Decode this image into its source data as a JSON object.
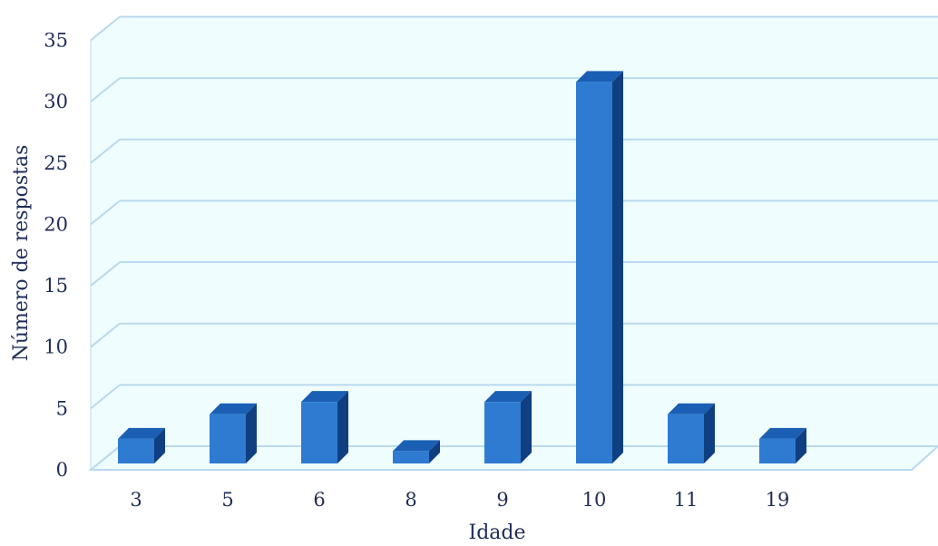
{
  "chart_data": {
    "type": "bar",
    "categories": [
      "3",
      "5",
      "6",
      "8",
      "9",
      "10",
      "11",
      "19"
    ],
    "values": [
      2,
      4,
      5,
      1,
      5,
      31,
      4,
      2
    ],
    "xlabel": "Idade",
    "ylabel": "Número de respostas",
    "ylim": [
      0,
      35
    ],
    "yticks": [
      "0",
      "5",
      "10",
      "15",
      "20",
      "25",
      "30",
      "35"
    ],
    "grid": true,
    "legend": "none",
    "colors": {
      "plot_background": "#effdff",
      "gridline": "#b9d9ee",
      "bar_front": "#2e7bd1",
      "bar_top": "#1a5fb4",
      "bar_side": "#0f3f80",
      "text": "#1f2d57"
    }
  }
}
